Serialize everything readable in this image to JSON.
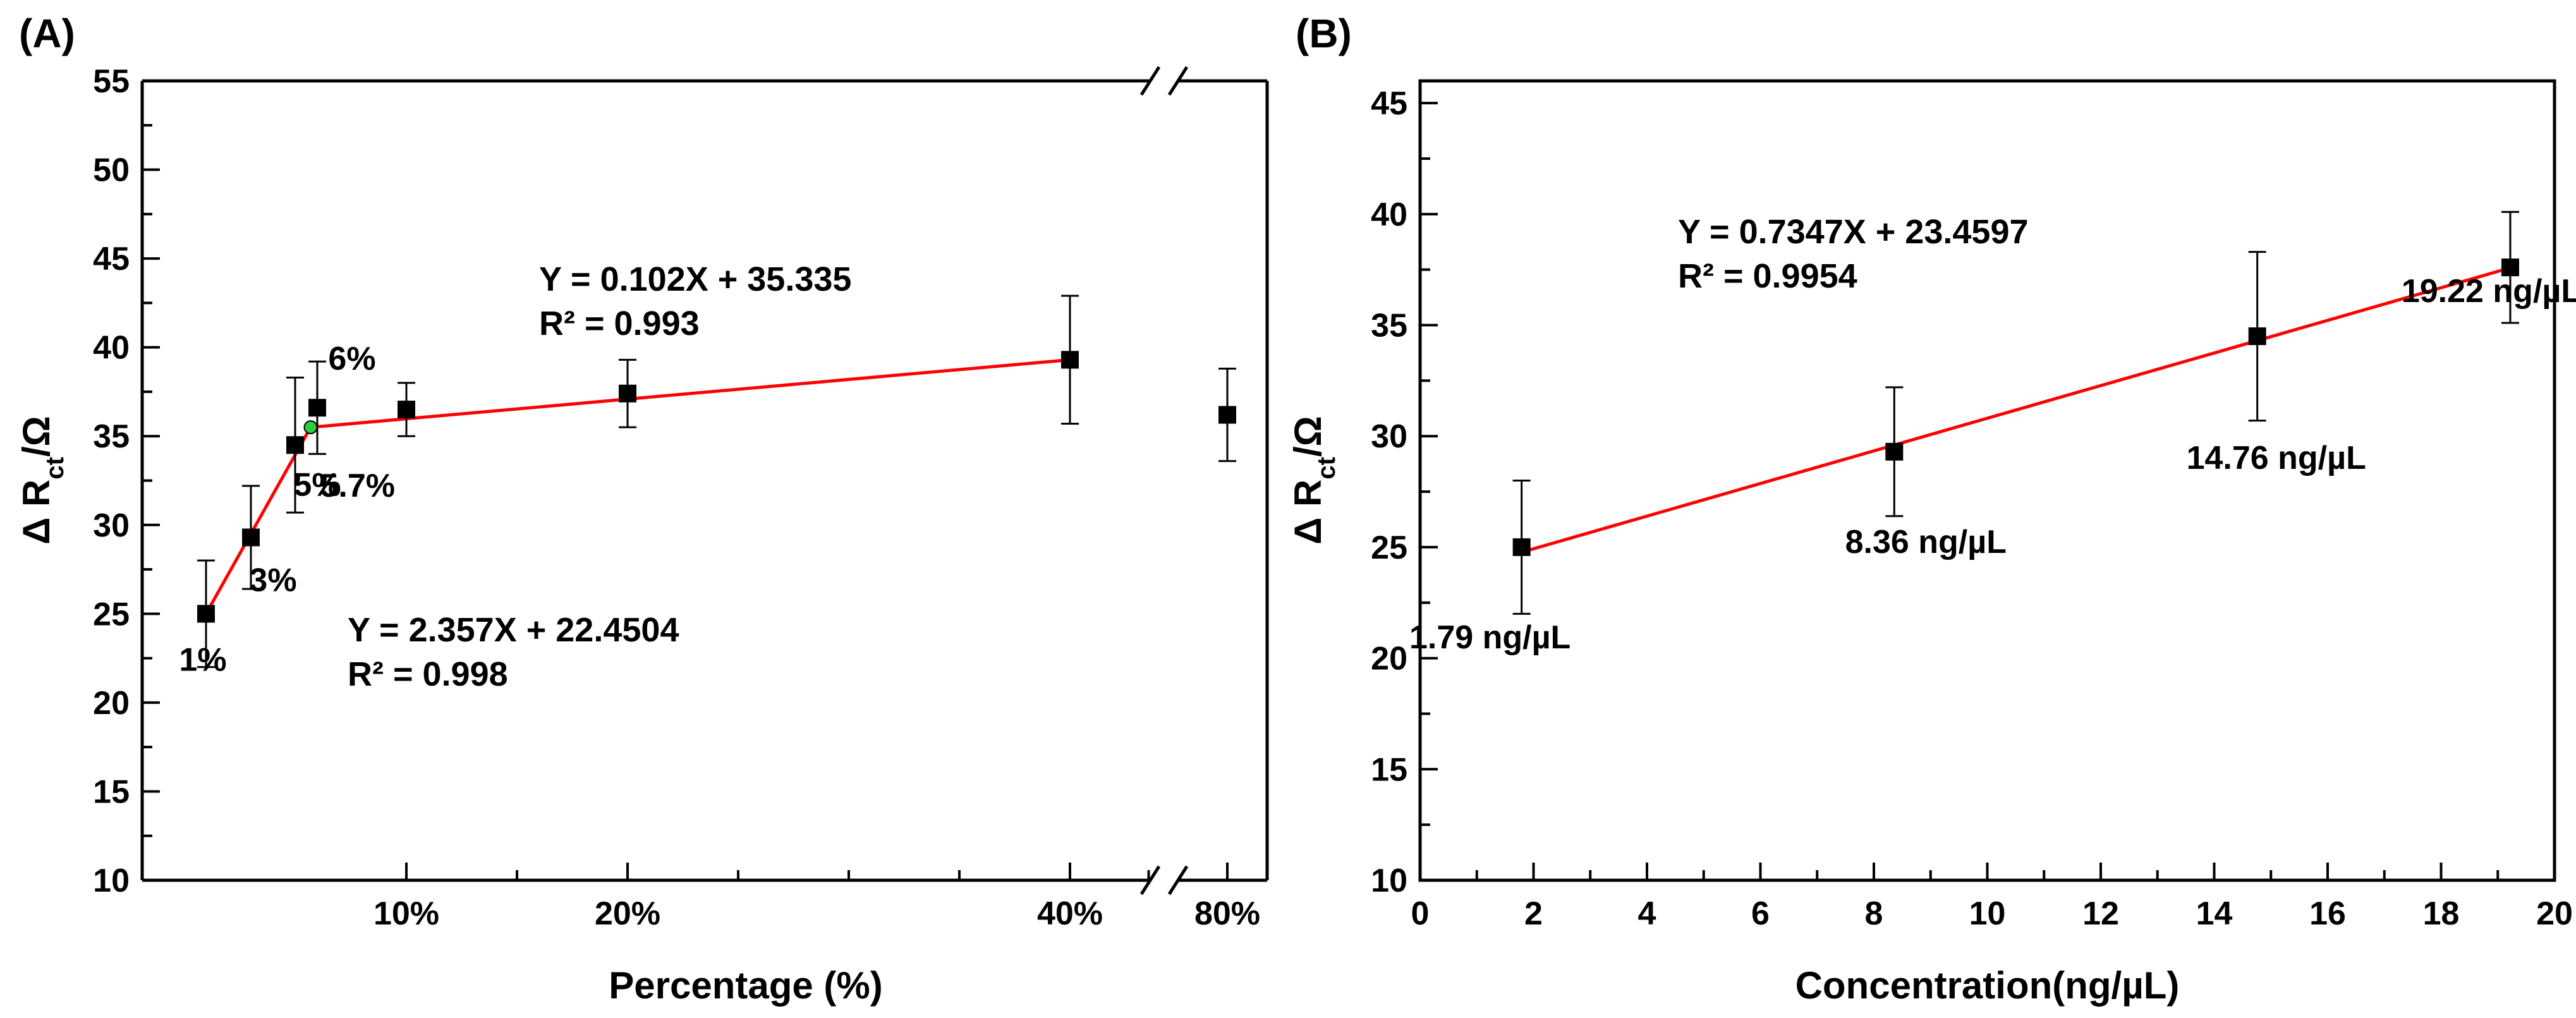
{
  "chart_data": [
    {
      "type": "scatter",
      "panel_label": "(A)",
      "xlabel": "Percentage (%)",
      "ylabel_prefix": "Δ R",
      "ylabel_sub": "ct",
      "ylabel_suffix": "/Ω",
      "ylim": [
        10,
        55
      ],
      "yticks": [
        "10",
        "15",
        "20",
        "25",
        "30",
        "35",
        "40",
        "45",
        "50",
        "55"
      ],
      "x_axis_note": "x axis is a percentage axis with a break between 40% and 80%",
      "xticks": [
        {
          "label": "10%",
          "x": 10
        },
        {
          "label": "20%",
          "x": 20
        },
        {
          "label": "40%",
          "x": 40
        },
        {
          "label": "80%",
          "x": 80
        }
      ],
      "points": [
        {
          "label": "1%",
          "x": 1,
          "y": 25.0,
          "err": 3.0
        },
        {
          "label": "3%",
          "x": 3,
          "y": 29.3,
          "err": 2.9
        },
        {
          "label": "5%",
          "x": 5,
          "y": 34.5,
          "err": 3.8
        },
        {
          "label": "6%",
          "x": 6,
          "y": 36.6,
          "err": 2.6
        },
        {
          "label": "",
          "x": 10,
          "y": 36.5,
          "err": 1.5
        },
        {
          "label": "",
          "x": 20,
          "y": 37.4,
          "err": 1.9
        },
        {
          "label": "",
          "x": 40,
          "y": 39.3,
          "err": 3.6
        },
        {
          "label": "",
          "x": 80,
          "y": 36.2,
          "err": 2.6
        }
      ],
      "intersection": {
        "label": "5.7%",
        "x": 5.7,
        "y": 35.5,
        "color": "#2ecc40"
      },
      "fits": [
        {
          "equation": "Y = 2.357X + 22.4504",
          "r2": "R² = 0.998",
          "x_from": 1,
          "x_to": 5.7
        },
        {
          "equation": "Y = 0.102X + 35.335",
          "r2": "R² = 0.993",
          "x_from": 5.7,
          "x_to": 40
        }
      ]
    },
    {
      "type": "scatter",
      "panel_label": "(B)",
      "xlabel": "Concentration(ng/µL)",
      "ylabel_prefix": "Δ R",
      "ylabel_sub": "ct",
      "ylabel_suffix": "/Ω",
      "xlim": [
        0,
        20
      ],
      "ylim": [
        10,
        46
      ],
      "xticks": [
        "0",
        "2",
        "4",
        "6",
        "8",
        "10",
        "12",
        "14",
        "16",
        "18",
        "20"
      ],
      "yticks": [
        "10",
        "15",
        "20",
        "25",
        "30",
        "35",
        "40",
        "45"
      ],
      "points": [
        {
          "label": "1.79 ng/µL",
          "x": 1.79,
          "y": 25.0,
          "err": 3.0
        },
        {
          "label": "8.36 ng/µL",
          "x": 8.36,
          "y": 29.3,
          "err": 2.9
        },
        {
          "label": "14.76 ng/µL",
          "x": 14.76,
          "y": 34.5,
          "err": 3.8
        },
        {
          "label": "19.22 ng/µL",
          "x": 19.22,
          "y": 37.6,
          "err": 2.5
        }
      ],
      "fits": [
        {
          "equation": "Y = 0.7347X + 23.4597",
          "r2": "R² = 0.9954",
          "x_from": 1.79,
          "x_to": 19.22
        }
      ]
    }
  ],
  "colors": {
    "fit_line": "#ff0000",
    "points": "#000000",
    "intersection": "#2ecc40"
  }
}
